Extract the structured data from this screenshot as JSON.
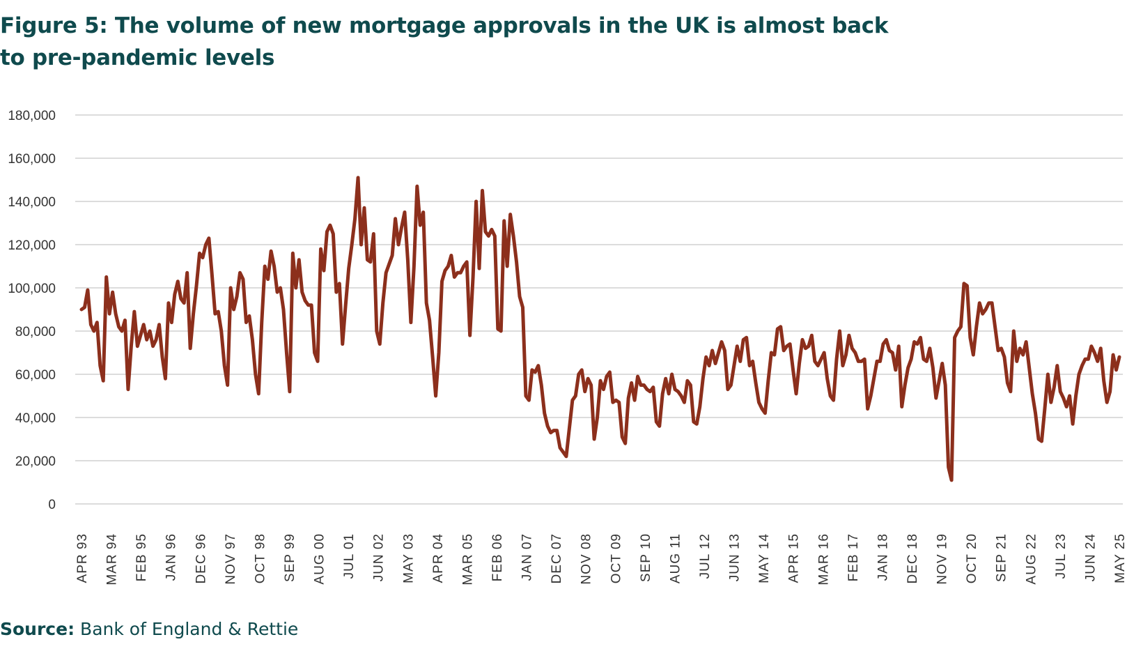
{
  "figure": {
    "title": "Figure 5: The volume of new mortgage approvals in the UK is almost back to pre-pandemic levels",
    "source_label": "Source:",
    "source_text": "Bank of England & Rettie"
  },
  "colors": {
    "title": "#0f4a4d",
    "series": "#8c2f1c",
    "grid": "#c8c8c8"
  },
  "chart_data": {
    "type": "line",
    "title": "Figure 5: The volume of new mortgage approvals in the UK is almost back to pre-pandemic levels",
    "xlabel": "",
    "ylabel": "",
    "ylim": [
      0,
      180000
    ],
    "yticks": [
      "180,000",
      "160,000",
      "140,000",
      "120,000",
      "100,000",
      "80,000",
      "60,000",
      "40,000",
      "20,000",
      "0"
    ],
    "ytick_values": [
      180000,
      160000,
      140000,
      120000,
      100000,
      80000,
      60000,
      40000,
      20000,
      0
    ],
    "x_tick_labels": [
      "APR 93",
      "MAR 94",
      "FEB 95",
      "JAN 96",
      "DEC 96",
      "NOV 97",
      "OCT 98",
      "SEP 99",
      "AUG 00",
      "JUL 01",
      "JUN 02",
      "MAY 03",
      "APR 04",
      "MAR 05",
      "FEB 06",
      "JAN 07",
      "DEC 07",
      "NOV 08",
      "OCT 09",
      "SEP 10",
      "AUG 11",
      "JUL 12",
      "JUN 13",
      "MAY 14",
      "APR 15",
      "MAR 16",
      "FEB 17",
      "JAN 18",
      "DEC 18",
      "NOV 19",
      "OCT 20",
      "SEP 21",
      "AUG 22",
      "JUL 23",
      "JUN 24",
      "MAY 25"
    ],
    "grid": true,
    "legend": "none",
    "x_start": "APR 93",
    "x_step": "month",
    "series": [
      {
        "values": [
          90000,
          91000,
          99000,
          83000,
          80000,
          84000,
          64000,
          57000,
          105000,
          88000,
          98000,
          88000,
          82000,
          80000,
          85000,
          53000,
          73000,
          89000,
          73000,
          78000,
          83000,
          76000,
          80000,
          73000,
          76000,
          83000,
          68000,
          58000,
          93000,
          84000,
          97000,
          103000,
          95000,
          93000,
          107000,
          72000,
          88000,
          101000,
          116000,
          114000,
          120000,
          123000,
          106000,
          88000,
          89000,
          80000,
          64000,
          55000,
          100000,
          90000,
          96000,
          107000,
          104000,
          84000,
          87000,
          76000,
          60000,
          51000,
          84000,
          110000,
          104000,
          117000,
          110000,
          98000,
          100000,
          90000,
          70000,
          52000,
          116000,
          100000,
          113000,
          98000,
          94000,
          92000,
          92000,
          70000,
          66000,
          118000,
          108000,
          126000,
          129000,
          125000,
          98000,
          102000,
          74000,
          92000,
          109000,
          120000,
          132000,
          151000,
          120000,
          137000,
          113000,
          112000,
          125000,
          80000,
          74000,
          93000,
          107000,
          111000,
          115000,
          132000,
          120000,
          128000,
          135000,
          113000,
          84000,
          110000,
          147000,
          129000,
          135000,
          93000,
          85000,
          68000,
          50000,
          70000,
          103000,
          108000,
          110000,
          115000,
          105000,
          107000,
          107000,
          110000,
          112000,
          78000,
          105000,
          140000,
          109000,
          145000,
          126000,
          124000,
          127000,
          124000,
          81000,
          80000,
          131000,
          110000,
          134000,
          124000,
          112000,
          96000,
          91000,
          50000,
          48000,
          62000,
          61000,
          64000,
          55000,
          42000,
          36000,
          33000,
          34000,
          34000,
          26000,
          24000,
          22000,
          35000,
          48000,
          50000,
          60000,
          62000,
          52000,
          58000,
          55000,
          30000,
          40000,
          57000,
          53000,
          59000,
          61000,
          47000,
          48000,
          47000,
          31000,
          28000,
          49000,
          56000,
          48000,
          59000,
          55000,
          55000,
          53000,
          52000,
          54000,
          38000,
          36000,
          51000,
          58000,
          51000,
          60000,
          53000,
          52000,
          50000,
          47000,
          57000,
          55000,
          38000,
          37000,
          45000,
          58000,
          68000,
          64000,
          71000,
          65000,
          70000,
          75000,
          71000,
          53000,
          55000,
          64000,
          73000,
          66000,
          76000,
          77000,
          64000,
          66000,
          56000,
          47000,
          44000,
          42000,
          57000,
          70000,
          69000,
          81000,
          82000,
          71000,
          73000,
          74000,
          62000,
          51000,
          65000,
          76000,
          72000,
          73000,
          78000,
          66000,
          64000,
          67000,
          70000,
          58000,
          50000,
          48000,
          67000,
          80000,
          64000,
          69000,
          78000,
          72000,
          70000,
          66000,
          66000,
          67000,
          44000,
          50000,
          58000,
          66000,
          66000,
          74000,
          76000,
          71000,
          70000,
          62000,
          73000,
          45000,
          55000,
          63000,
          67000,
          75000,
          74000,
          77000,
          67000,
          66000,
          72000,
          63000,
          49000,
          57000,
          65000,
          55000,
          17000,
          11000,
          77000,
          80000,
          82000,
          102000,
          101000,
          77000,
          69000,
          82000,
          93000,
          88000,
          90000,
          93000,
          93000,
          82000,
          71000,
          72000,
          68000,
          56000,
          52000,
          80000,
          66000,
          72000,
          69000,
          75000,
          63000,
          51000,
          42000,
          30000,
          29000,
          44000,
          60000,
          47000,
          54000,
          64000,
          52000,
          49000,
          45000,
          50000,
          37000,
          50000,
          60000,
          64000,
          67000,
          67000,
          73000,
          70000,
          66000,
          72000,
          57000,
          47000,
          52000,
          69000,
          62000,
          68000
        ]
      }
    ]
  }
}
